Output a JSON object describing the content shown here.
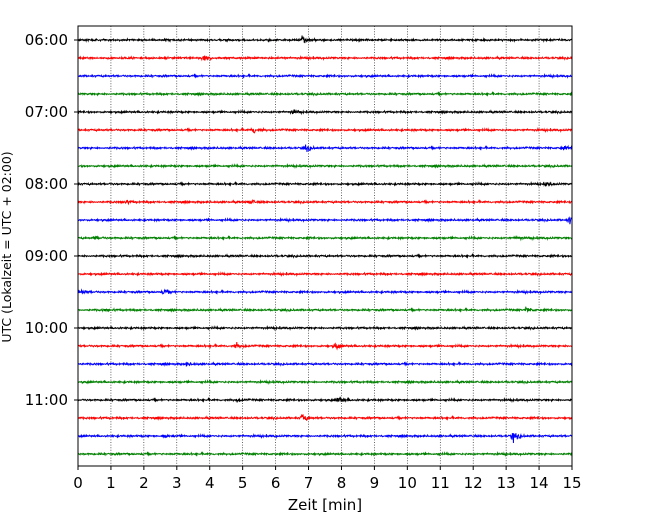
{
  "chart_data": {
    "type": "line",
    "title": "",
    "xlabel": "Zeit  [min]",
    "ylabel": "UTC (Lokalzeit = UTC + 02:00)",
    "xlim": [
      0,
      15
    ],
    "x_ticks": [
      0,
      1,
      2,
      3,
      4,
      5,
      6,
      7,
      8,
      9,
      10,
      11,
      12,
      13,
      14,
      15
    ],
    "y_tick_labels": [
      "06:00",
      "07:00",
      "08:00",
      "09:00",
      "10:00",
      "11:00"
    ],
    "grid": "vertical dotted",
    "trace_colors": [
      "#000000",
      "#ff0000",
      "#0000ff",
      "#008000"
    ],
    "trace_minutes_each": 15,
    "traces": [
      {
        "start": "06:00",
        "color": "#000000",
        "events": [
          [
            6.8,
            1.0
          ]
        ]
      },
      {
        "start": "06:15",
        "color": "#ff0000",
        "events": [
          [
            3.8,
            0.7
          ]
        ]
      },
      {
        "start": "06:30",
        "color": "#0000ff",
        "events": []
      },
      {
        "start": "06:45",
        "color": "#008000",
        "events": []
      },
      {
        "start": "07:00",
        "color": "#000000",
        "events": [
          [
            6.5,
            0.4
          ]
        ]
      },
      {
        "start": "07:15",
        "color": "#ff0000",
        "events": [
          [
            5.3,
            0.9
          ]
        ]
      },
      {
        "start": "07:30",
        "color": "#0000ff",
        "events": [
          [
            6.9,
            0.7
          ],
          [
            14.7,
            0.5
          ]
        ]
      },
      {
        "start": "07:45",
        "color": "#008000",
        "events": []
      },
      {
        "start": "08:00",
        "color": "#000000",
        "events": [
          [
            14.2,
            0.5
          ]
        ]
      },
      {
        "start": "08:15",
        "color": "#ff0000",
        "events": [
          [
            1.4,
            0.4
          ],
          [
            5.2,
            0.6
          ]
        ]
      },
      {
        "start": "08:30",
        "color": "#0000ff",
        "events": [
          [
            14.9,
            0.9
          ]
        ]
      },
      {
        "start": "08:45",
        "color": "#008000",
        "events": [
          [
            0.5,
            0.5
          ],
          [
            13.3,
            0.4
          ]
        ]
      },
      {
        "start": "09:00",
        "color": "#000000",
        "events": []
      },
      {
        "start": "09:15",
        "color": "#ff0000",
        "events": []
      },
      {
        "start": "09:30",
        "color": "#0000ff",
        "events": [
          [
            0.1,
            0.5
          ],
          [
            2.6,
            0.6
          ]
        ]
      },
      {
        "start": "09:45",
        "color": "#008000",
        "events": [
          [
            13.6,
            0.6
          ],
          [
            0.8,
            0.3
          ]
        ]
      },
      {
        "start": "10:00",
        "color": "#000000",
        "events": []
      },
      {
        "start": "10:15",
        "color": "#ff0000",
        "events": [
          [
            4.8,
            0.7
          ],
          [
            7.8,
            0.6
          ]
        ]
      },
      {
        "start": "10:30",
        "color": "#0000ff",
        "events": [
          [
            3.3,
            0.4
          ]
        ]
      },
      {
        "start": "10:45",
        "color": "#008000",
        "events": []
      },
      {
        "start": "11:00",
        "color": "#000000",
        "events": [
          [
            7.9,
            1.0
          ],
          [
            4.8,
            0.4
          ]
        ]
      },
      {
        "start": "11:15",
        "color": "#ff0000",
        "events": [
          [
            6.8,
            0.9
          ]
        ]
      },
      {
        "start": "11:30",
        "color": "#0000ff",
        "events": [
          [
            13.2,
            1.1
          ],
          [
            2.6,
            0.3
          ]
        ]
      },
      {
        "start": "11:45",
        "color": "#008000",
        "events": []
      }
    ]
  }
}
